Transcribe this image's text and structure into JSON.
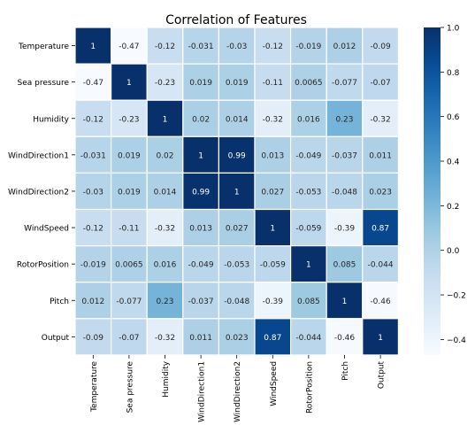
{
  "chart_data": {
    "type": "heatmap",
    "title": "Correlation of Features",
    "labels": [
      "Temperature",
      "Sea pressure",
      "Humidity",
      "WindDirection1",
      "WindDirection2",
      "WindSpeed",
      "RotorPosition",
      "Pitch",
      "Output"
    ],
    "matrix": [
      [
        "1",
        "-0.47",
        "-0.12",
        "-0.031",
        "-0.03",
        "-0.12",
        "-0.019",
        "0.012",
        "-0.09"
      ],
      [
        "-0.47",
        "1",
        "-0.23",
        "0.019",
        "0.019",
        "-0.11",
        "0.0065",
        "-0.077",
        "-0.07"
      ],
      [
        "-0.12",
        "-0.23",
        "1",
        "0.02",
        "0.014",
        "-0.32",
        "0.016",
        "0.23",
        "-0.32"
      ],
      [
        "-0.031",
        "0.019",
        "0.02",
        "1",
        "0.99",
        "0.013",
        "-0.049",
        "-0.037",
        "0.011"
      ],
      [
        "-0.03",
        "0.019",
        "0.014",
        "0.99",
        "1",
        "0.027",
        "-0.053",
        "-0.048",
        "0.023"
      ],
      [
        "-0.12",
        "-0.11",
        "-0.32",
        "0.013",
        "0.027",
        "1",
        "-0.059",
        "-0.39",
        "0.87"
      ],
      [
        "-0.019",
        "0.0065",
        "0.016",
        "-0.049",
        "-0.053",
        "-0.059",
        "1",
        "0.085",
        "-0.044"
      ],
      [
        "0.012",
        "-0.077",
        "0.23",
        "-0.037",
        "-0.048",
        "-0.39",
        "0.085",
        "1",
        "-0.46"
      ],
      [
        "-0.09",
        "-0.07",
        "-0.32",
        "0.011",
        "0.023",
        "0.87",
        "-0.044",
        "-0.46",
        "1"
      ]
    ],
    "colorbar": {
      "colormap": "Blues",
      "vmin": -0.47,
      "vmax": 1.0,
      "ticks": [
        "1.0",
        "0.8",
        "0.6",
        "0.4",
        "0.2",
        "0.0",
        "−0.2",
        "−0.4"
      ],
      "tick_values": [
        1.0,
        0.8,
        0.6,
        0.4,
        0.2,
        0.0,
        -0.2,
        -0.4
      ]
    },
    "annotations": true,
    "grid": "white cell borders"
  }
}
